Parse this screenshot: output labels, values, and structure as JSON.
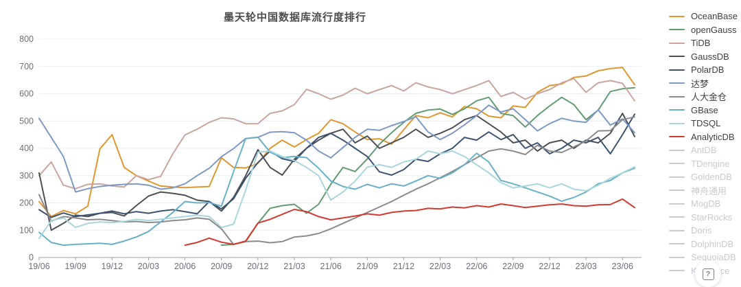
{
  "chart_data": {
    "type": "line",
    "title": "墨天轮中国数据库流行度排行",
    "xlabel": "",
    "ylabel": "",
    "ylim": [
      0,
      800
    ],
    "y_ticks": [
      0,
      100,
      200,
      300,
      400,
      500,
      600,
      700,
      800
    ],
    "grid": true,
    "legend_position": "right",
    "x_tick_every": 3,
    "x": [
      "19/06",
      "19/07",
      "19/08",
      "19/09",
      "19/10",
      "19/11",
      "19/12",
      "20/01",
      "20/02",
      "20/03",
      "20/04",
      "20/05",
      "20/06",
      "20/07",
      "20/08",
      "20/09",
      "20/10",
      "20/11",
      "20/12",
      "21/01",
      "21/02",
      "21/03",
      "21/04",
      "21/05",
      "21/06",
      "21/07",
      "21/08",
      "21/09",
      "21/10",
      "21/11",
      "21/12",
      "22/01",
      "22/02",
      "22/03",
      "22/04",
      "22/05",
      "22/06",
      "22/07",
      "22/08",
      "22/09",
      "22/10",
      "22/11",
      "22/12",
      "23/01",
      "23/02",
      "23/03",
      "23/04",
      "23/05",
      "23/06",
      "23/07"
    ],
    "series": [
      {
        "name": "OceanBase",
        "color": "#e0962e",
        "active": true,
        "values": [
          205,
          150,
          172,
          160,
          188,
          398,
          450,
          330,
          300,
          280,
          262,
          258,
          256,
          258,
          260,
          365,
          330,
          328,
          345,
          400,
          430,
          405,
          432,
          455,
          505,
          490,
          460,
          432,
          435,
          415,
          468,
          520,
          512,
          530,
          515,
          553,
          545,
          518,
          512,
          555,
          550,
          605,
          630,
          636,
          660,
          665,
          684,
          692,
          696,
          633
        ]
      },
      {
        "name": "openGauss",
        "color": "#609c70",
        "active": true,
        "values": [
          null,
          null,
          null,
          null,
          null,
          null,
          null,
          null,
          null,
          null,
          null,
          null,
          null,
          null,
          null,
          45,
          48,
          58,
          125,
          180,
          190,
          195,
          162,
          195,
          268,
          330,
          315,
          361,
          415,
          457,
          495,
          528,
          540,
          544,
          524,
          545,
          574,
          587,
          528,
          520,
          478,
          520,
          555,
          587,
          560,
          505,
          540,
          608,
          618,
          622
        ]
      },
      {
        "name": "TiDB",
        "color": "#c9a59d",
        "active": true,
        "values": [
          300,
          350,
          265,
          252,
          268,
          270,
          262,
          258,
          300,
          285,
          297,
          380,
          449,
          470,
          495,
          512,
          508,
          490,
          490,
          528,
          537,
          560,
          616,
          600,
          580,
          595,
          620,
          600,
          615,
          630,
          610,
          640,
          625,
          615,
          600,
          615,
          630,
          648,
          590,
          605,
          580,
          600,
          615,
          640,
          655,
          605,
          640,
          648,
          638,
          574
        ]
      },
      {
        "name": "GaussDB",
        "color": "#4b4f54",
        "active": true,
        "values": [
          310,
          100,
          125,
          155,
          150,
          162,
          165,
          152,
          190,
          225,
          240,
          235,
          228,
          210,
          205,
          170,
          220,
          300,
          395,
          330,
          302,
          360,
          400,
          430,
          455,
          470,
          420,
          445,
          400,
          420,
          440,
          470,
          440,
          455,
          475,
          505,
          520,
          490,
          460,
          420,
          430,
          390,
          420,
          430,
          400,
          430,
          420,
          455,
          528,
          443
        ]
      },
      {
        "name": "PolarDB",
        "color": "#3c536f",
        "active": true,
        "values": [
          175,
          147,
          163,
          150,
          156,
          162,
          170,
          160,
          168,
          162,
          170,
          175,
          168,
          160,
          205,
          178,
          215,
          290,
          348,
          390,
          362,
          352,
          400,
          440,
          455,
          430,
          400,
          370,
          314,
          302,
          322,
          360,
          352,
          380,
          400,
          440,
          430,
          460,
          432,
          450,
          400,
          420,
          380,
          400,
          430,
          420,
          440,
          380,
          450,
          525
        ]
      },
      {
        "name": "达梦",
        "color": "#7d98c5",
        "active": true,
        "values": [
          510,
          440,
          370,
          240,
          252,
          260,
          265,
          268,
          270,
          265,
          250,
          255,
          270,
          300,
          327,
          369,
          399,
          436,
          440,
          459,
          461,
          457,
          430,
          390,
          365,
          403,
          440,
          470,
          466,
          483,
          498,
          516,
          460,
          432,
          455,
          486,
          520,
          558,
          533,
          545,
          505,
          464,
          490,
          510,
          500,
          495,
          541,
          485,
          508,
          457
        ]
      },
      {
        "name": "人大金仓",
        "color": "#8a8a8a",
        "active": true,
        "values": [
          230,
          133,
          150,
          145,
          138,
          140,
          135,
          130,
          132,
          128,
          130,
          135,
          138,
          145,
          140,
          105,
          48,
          58,
          60,
          54,
          58,
          75,
          79,
          88,
          105,
          125,
          145,
          165,
          185,
          205,
          228,
          250,
          270,
          292,
          315,
          340,
          365,
          390,
          398,
          390,
          377,
          411,
          390,
          385,
          405,
          427,
          464,
          465,
          505,
          515
        ]
      },
      {
        "name": "GBase",
        "color": "#68b0c6",
        "active": true,
        "values": [
          92,
          55,
          45,
          48,
          50,
          52,
          48,
          60,
          75,
          95,
          130,
          165,
          205,
          200,
          201,
          188,
          314,
          436,
          441,
          386,
          366,
          370,
          366,
          327,
          280,
          260,
          250,
          268,
          255,
          270,
          262,
          280,
          300,
          290,
          310,
          340,
          382,
          350,
          282,
          270,
          255,
          240,
          225,
          206,
          220,
          240,
          270,
          282,
          310,
          327
        ]
      },
      {
        "name": "TDSQL",
        "color": "#a9d6dd",
        "active": true,
        "values": [
          70,
          135,
          145,
          110,
          125,
          130,
          128,
          132,
          140,
          135,
          140,
          145,
          150,
          155,
          150,
          110,
          122,
          247,
          386,
          390,
          370,
          355,
          330,
          300,
          210,
          240,
          280,
          331,
          340,
          330,
          350,
          360,
          390,
          380,
          390,
          370,
          340,
          310,
          274,
          255,
          262,
          270,
          255,
          270,
          250,
          244,
          265,
          290,
          310,
          332
        ]
      },
      {
        "name": "AnalyticDB",
        "color": "#d3392f",
        "active": true,
        "values": [
          null,
          null,
          null,
          null,
          null,
          null,
          null,
          null,
          null,
          null,
          null,
          null,
          45,
          55,
          71,
          56,
          48,
          60,
          126,
          140,
          158,
          176,
          168,
          150,
          138,
          145,
          152,
          160,
          155,
          165,
          170,
          172,
          180,
          178,
          185,
          182,
          190,
          185,
          196,
          190,
          183,
          188,
          193,
          196,
          190,
          188,
          193,
          194,
          214,
          183
        ]
      },
      {
        "name": "AntDB",
        "color": "#c9ccd1",
        "active": false,
        "values": []
      },
      {
        "name": "TDengine",
        "color": "#c9ccd1",
        "active": false,
        "values": []
      },
      {
        "name": "GoldenDB",
        "color": "#c9ccd1",
        "active": false,
        "values": []
      },
      {
        "name": "神舟通用",
        "color": "#c9ccd1",
        "active": false,
        "values": []
      },
      {
        "name": "MogDB",
        "color": "#c9ccd1",
        "active": false,
        "values": []
      },
      {
        "name": "StarRocks",
        "color": "#c9ccd1",
        "active": false,
        "values": []
      },
      {
        "name": "Doris",
        "color": "#c9ccd1",
        "active": false,
        "values": []
      },
      {
        "name": "DolphinDB",
        "color": "#c9ccd1",
        "active": false,
        "values": []
      },
      {
        "name": "SequoiaDB",
        "color": "#c9ccd1",
        "active": false,
        "values": []
      },
      {
        "name": "Kyligence",
        "color": "#c9ccd1",
        "active": false,
        "values": []
      }
    ],
    "colors": {
      "grid": "#e8eef6",
      "axis": "#9aa0a6",
      "tick_label": "#6b6f78",
      "title": "#4c4c4c"
    }
  },
  "help_button": {
    "icon": "?"
  }
}
